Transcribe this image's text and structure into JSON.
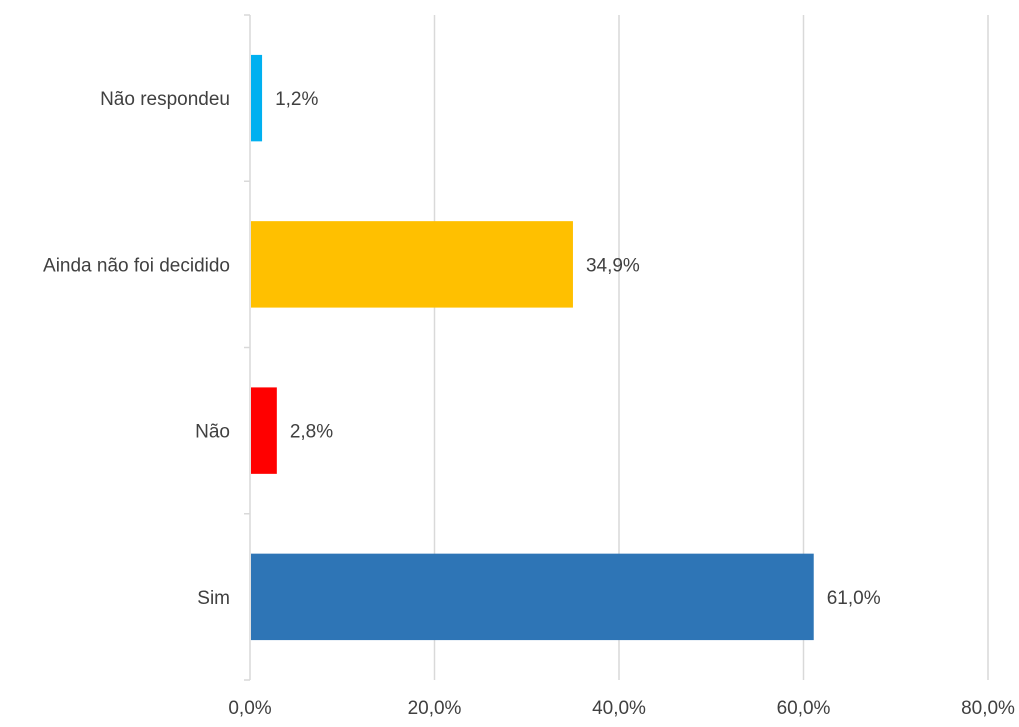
{
  "chart_data": {
    "type": "bar",
    "orientation": "horizontal",
    "categories": [
      "Não respondeu",
      "Ainda não foi decidido",
      "Não",
      "Sim"
    ],
    "values": [
      1.2,
      34.9,
      2.8,
      61.0
    ],
    "data_labels": [
      "1,2%",
      "34,9%",
      "2,8%",
      "61,0%"
    ],
    "colors": [
      "#00b0f0",
      "#ffc000",
      "#ff0000",
      "#2e75b6"
    ],
    "xlim": [
      0,
      80
    ],
    "x_ticks": [
      0,
      20,
      40,
      60,
      80
    ],
    "x_tick_labels": [
      "0,0%",
      "20,0%",
      "40,0%",
      "60,0%",
      "80,0%"
    ],
    "grid": true,
    "gridline_color": "#d9d9d9",
    "legend": "none"
  }
}
